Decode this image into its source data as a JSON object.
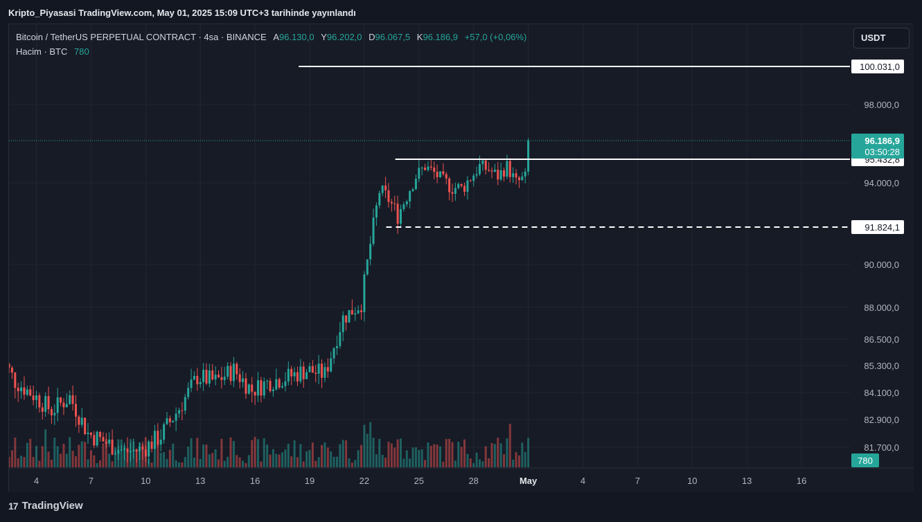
{
  "header": {
    "published": "Kripto_Piyasasi TradingView.com, May 01, 2025 15:09 UTC+3 tarihinde yayınlandı"
  },
  "legend": {
    "symbol": "Bitcoin / TetherUS PERPETUAL CONTRACT · 4sa · BINANCE",
    "ohlc": [
      {
        "key": "A",
        "value": "96.130,0"
      },
      {
        "key": "Y",
        "value": "96.202,0"
      },
      {
        "key": "D",
        "value": "96.067,5"
      },
      {
        "key": "K",
        "value": "96.186,9"
      }
    ],
    "change": "+57,0 (+0,06%)",
    "volume_label": "Hacim · BTC",
    "volume_value": "780"
  },
  "currency_button": "USDT",
  "footer": {
    "logo_glyph": "17",
    "brand": "TradingView"
  },
  "colors": {
    "up": "#26a69a",
    "down": "#ef5350",
    "background": "#171b26",
    "grid": "#232632",
    "level_line": "#ffffff"
  },
  "chart_data": {
    "type": "candlestick",
    "x_ticks": [
      "4",
      "7",
      "10",
      "13",
      "16",
      "19",
      "22",
      "25",
      "28",
      "May",
      "4",
      "7",
      "10",
      "13",
      "16"
    ],
    "y_ticks": [
      "100.031,0",
      "98.000,0",
      "96.186,9",
      "95.432,8",
      "94.000,0",
      "91.824,1",
      "90.000,0",
      "88.000,0",
      "86.500,0",
      "85.300,0",
      "84.100,0",
      "82.900,0",
      "81.700,0"
    ],
    "ylim": [
      81000,
      101000
    ],
    "current_price": {
      "value": "96.186,9",
      "countdown": "03:50:28",
      "price": 96186.9
    },
    "volume_badge": "780",
    "levels": [
      {
        "label": "100.031,0",
        "price": 100031,
        "style": "solid",
        "from_day": 18.4
      },
      {
        "label": "95.432,8",
        "price": 95432.8,
        "style": "solid",
        "from_day": 23.7
      },
      {
        "label": "91.824,1",
        "price": 91824.1,
        "style": "dashed",
        "from_day": 23.2
      }
    ],
    "series": [
      {
        "day": 2.0,
        "close": 86000
      },
      {
        "day": 3.0,
        "close": 84600
      },
      {
        "day": 4.0,
        "close": 84000
      },
      {
        "day": 5.0,
        "close": 83300
      },
      {
        "day": 6.0,
        "close": 83900
      },
      {
        "day": 7.0,
        "close": 82300
      },
      {
        "day": 8.0,
        "close": 81900
      },
      {
        "day": 9.0,
        "close": 81500
      },
      {
        "day": 10.0,
        "close": 81600
      },
      {
        "day": 11.0,
        "close": 82200
      },
      {
        "day": 12.0,
        "close": 83400
      },
      {
        "day": 13.0,
        "close": 84800
      },
      {
        "day": 14.0,
        "close": 84600
      },
      {
        "day": 15.0,
        "close": 85100
      },
      {
        "day": 16.0,
        "close": 84200
      },
      {
        "day": 17.0,
        "close": 84600
      },
      {
        "day": 18.0,
        "close": 84800
      },
      {
        "day": 19.0,
        "close": 85100
      },
      {
        "day": 20.0,
        "close": 84900
      },
      {
        "day": 21.0,
        "close": 87500
      },
      {
        "day": 22.0,
        "close": 88200
      },
      {
        "day": 22.5,
        "close": 91000
      },
      {
        "day": 23.0,
        "close": 93600
      },
      {
        "day": 23.5,
        "close": 93200
      },
      {
        "day": 24.0,
        "close": 92400
      },
      {
        "day": 24.5,
        "close": 93400
      },
      {
        "day": 25.0,
        "close": 94400
      },
      {
        "day": 25.5,
        "close": 95000
      },
      {
        "day": 26.0,
        "close": 94600
      },
      {
        "day": 26.5,
        "close": 94100
      },
      {
        "day": 27.0,
        "close": 93800
      },
      {
        "day": 27.5,
        "close": 93700
      },
      {
        "day": 28.0,
        "close": 94300
      },
      {
        "day": 28.5,
        "close": 95000
      },
      {
        "day": 29.0,
        "close": 94800
      },
      {
        "day": 29.5,
        "close": 94400
      },
      {
        "day": 30.0,
        "close": 95000
      },
      {
        "day": 30.5,
        "close": 94000
      },
      {
        "day": 31.0,
        "close": 94300
      },
      {
        "day": 31.2,
        "close": 96187
      }
    ]
  }
}
